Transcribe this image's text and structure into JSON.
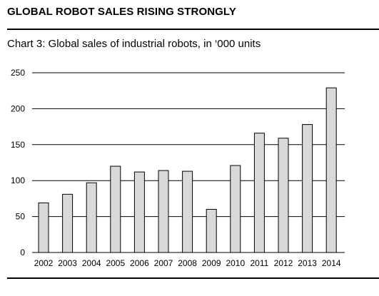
{
  "headline": "GLOBAL ROBOT SALES RISING STRONGLY",
  "caption": "Chart 3: Global sales of industrial robots, in ‘000 units",
  "chart_data": {
    "type": "bar",
    "title": "Chart 3: Global sales of industrial robots, in ‘000 units",
    "xlabel": "",
    "ylabel": "",
    "categories": [
      "2002",
      "2003",
      "2004",
      "2005",
      "2006",
      "2007",
      "2008",
      "2009",
      "2010",
      "2011",
      "2012",
      "2013",
      "2014"
    ],
    "values": [
      69,
      81,
      97,
      120,
      112,
      114,
      113,
      60,
      121,
      166,
      159,
      178,
      229
    ],
    "ylim": [
      0,
      250
    ],
    "yticks": [
      0,
      50,
      100,
      150,
      200,
      250
    ],
    "grid": true,
    "bar_color": "#d9d9d9",
    "bar_edge_color": "#000000"
  }
}
